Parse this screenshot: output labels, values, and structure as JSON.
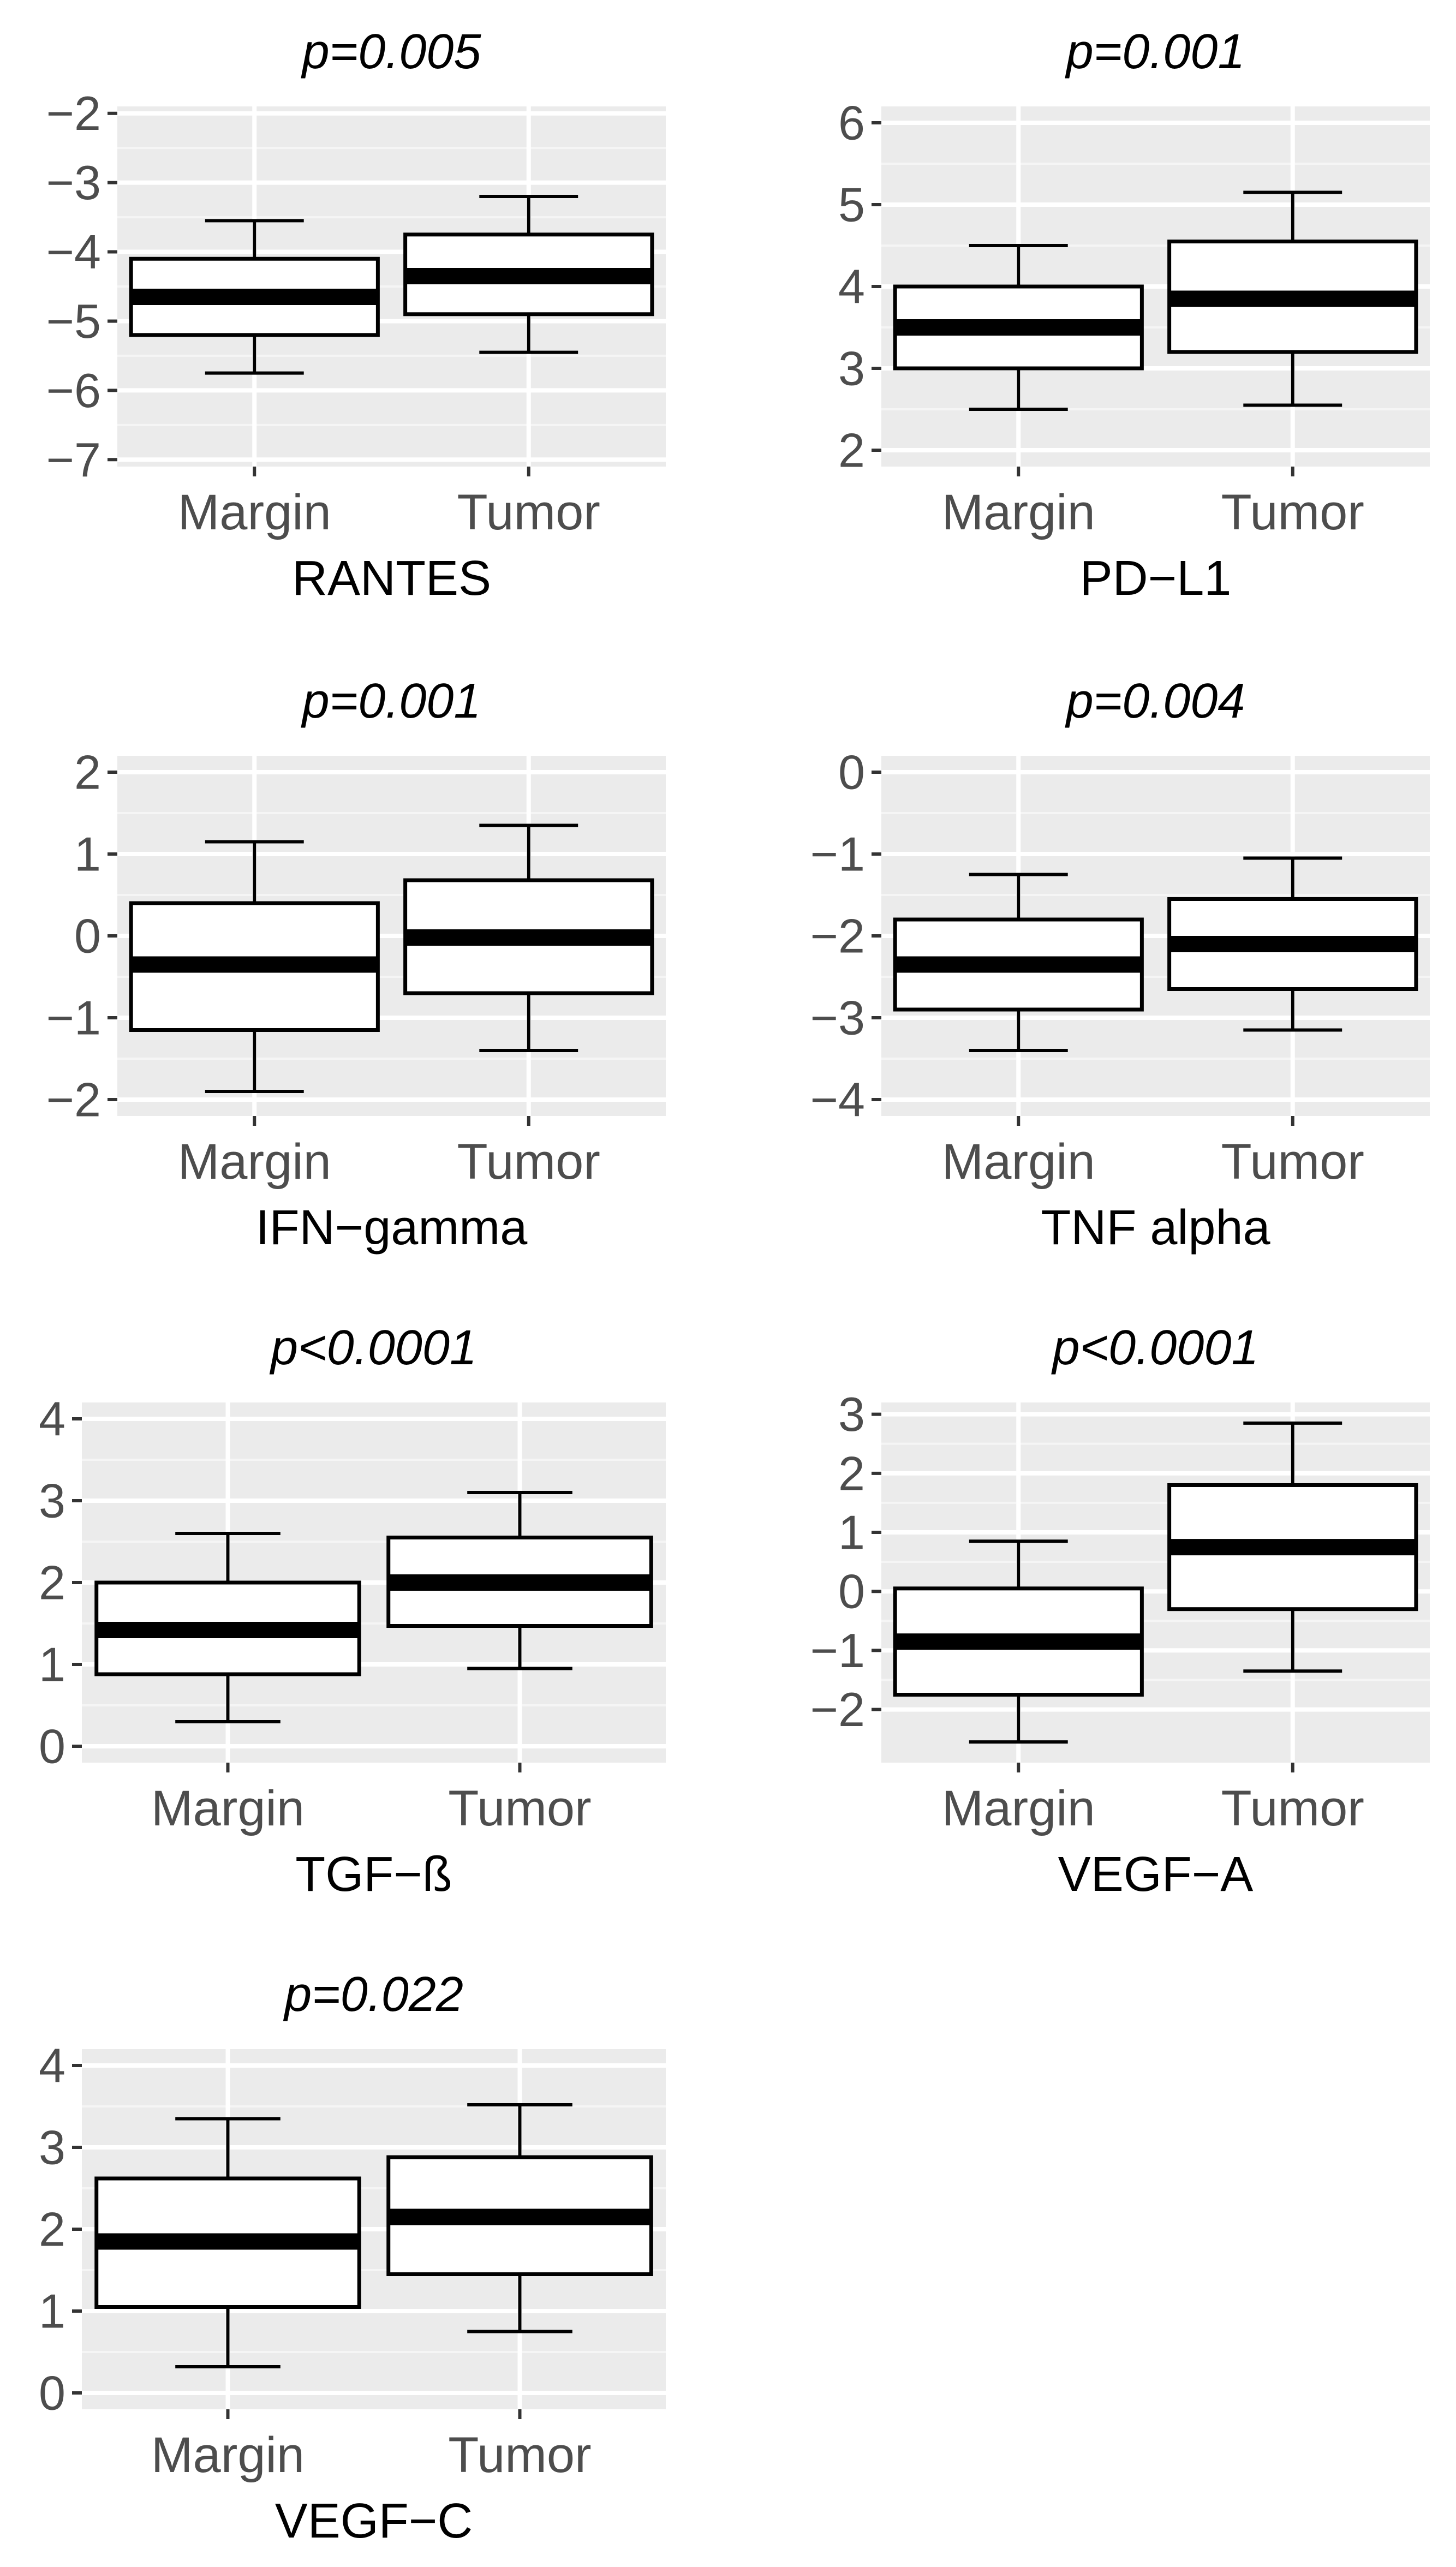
{
  "figure": {
    "colors": {
      "panel_background": "#ebebeb",
      "grid_major": "#ffffff",
      "grid_minor": "#f5f5f5",
      "box_fill": "#ffffff",
      "box_stroke": "#000000",
      "tick_text": "#4d4d4d",
      "title_text": "#000000"
    }
  },
  "chart_data": [
    {
      "type": "boxplot",
      "title": "p=0.005",
      "xlabel": "RANTES",
      "ylabel": "",
      "categories": [
        "Margin",
        "Tumor"
      ],
      "ylim": [
        -7.1,
        -1.9
      ],
      "yticks": [
        -2,
        -3,
        -4,
        -5,
        -6,
        -7
      ],
      "ytick_labels": [
        "−2",
        "−3",
        "−4",
        "−5",
        "−6",
        "−7"
      ],
      "boxes": [
        {
          "name": "Margin",
          "whisker_low": -5.75,
          "q1": -5.2,
          "median": -4.65,
          "q3": -4.1,
          "whisker_high": -3.55
        },
        {
          "name": "Tumor",
          "whisker_low": -5.45,
          "q1": -4.9,
          "median": -4.35,
          "q3": -3.75,
          "whisker_high": -3.2
        }
      ]
    },
    {
      "type": "boxplot",
      "title": "p=0.001",
      "xlabel": "PD−L1",
      "ylabel": "",
      "categories": [
        "Margin",
        "Tumor"
      ],
      "ylim": [
        1.8,
        6.2
      ],
      "yticks": [
        2,
        3,
        4,
        5,
        6
      ],
      "ytick_labels": [
        "2",
        "3",
        "4",
        "5",
        "6"
      ],
      "boxes": [
        {
          "name": "Margin",
          "whisker_low": 2.5,
          "q1": 3.0,
          "median": 3.5,
          "q3": 4.0,
          "whisker_high": 4.5
        },
        {
          "name": "Tumor",
          "whisker_low": 2.55,
          "q1": 3.2,
          "median": 3.85,
          "q3": 4.55,
          "whisker_high": 5.15
        }
      ]
    },
    {
      "type": "boxplot",
      "title": "p=0.001",
      "xlabel": "IFN−gamma",
      "ylabel": "",
      "categories": [
        "Margin",
        "Tumor"
      ],
      "ylim": [
        -2.2,
        2.2
      ],
      "yticks": [
        2,
        1,
        0,
        -1,
        -2
      ],
      "ytick_labels": [
        "2",
        "1",
        "0",
        "−1",
        "−2"
      ],
      "boxes": [
        {
          "name": "Margin",
          "whisker_low": -1.9,
          "q1": -1.15,
          "median": -0.35,
          "q3": 0.4,
          "whisker_high": 1.15
        },
        {
          "name": "Tumor",
          "whisker_low": -1.4,
          "q1": -0.7,
          "median": -0.02,
          "q3": 0.68,
          "whisker_high": 1.35
        }
      ]
    },
    {
      "type": "boxplot",
      "title": "p=0.004",
      "xlabel": "TNF alpha",
      "ylabel": "",
      "categories": [
        "Margin",
        "Tumor"
      ],
      "ylim": [
        -4.2,
        0.2
      ],
      "yticks": [
        0,
        -1,
        -2,
        -3,
        -4
      ],
      "ytick_labels": [
        "0",
        "−1",
        "−2",
        "−3",
        "−4"
      ],
      "boxes": [
        {
          "name": "Margin",
          "whisker_low": -3.4,
          "q1": -2.9,
          "median": -2.35,
          "q3": -1.8,
          "whisker_high": -1.25
        },
        {
          "name": "Tumor",
          "whisker_low": -3.15,
          "q1": -2.65,
          "median": -2.1,
          "q3": -1.55,
          "whisker_high": -1.05
        }
      ]
    },
    {
      "type": "boxplot",
      "title": "p<0.0001",
      "xlabel": "TGF−ß",
      "ylabel": "",
      "categories": [
        "Margin",
        "Tumor"
      ],
      "ylim": [
        -0.2,
        4.2
      ],
      "yticks": [
        4,
        3,
        2,
        1,
        0
      ],
      "ytick_labels": [
        "4",
        "3",
        "2",
        "1",
        "0"
      ],
      "boxes": [
        {
          "name": "Margin",
          "whisker_low": 0.3,
          "q1": 0.88,
          "median": 1.42,
          "q3": 2.0,
          "whisker_high": 2.6
        },
        {
          "name": "Tumor",
          "whisker_low": 0.95,
          "q1": 1.47,
          "median": 2.0,
          "q3": 2.55,
          "whisker_high": 3.1
        }
      ]
    },
    {
      "type": "boxplot",
      "title": "p<0.0001",
      "xlabel": "VEGF−A",
      "ylabel": "",
      "categories": [
        "Margin",
        "Tumor"
      ],
      "ylim": [
        -2.9,
        3.2
      ],
      "yticks": [
        3,
        2,
        1,
        0,
        -1,
        -2
      ],
      "ytick_labels": [
        "3",
        "2",
        "1",
        "0",
        "−1",
        "−2"
      ],
      "boxes": [
        {
          "name": "Margin",
          "whisker_low": -2.55,
          "q1": -1.75,
          "median": -0.85,
          "q3": 0.05,
          "whisker_high": 0.85
        },
        {
          "name": "Tumor",
          "whisker_low": -1.35,
          "q1": -0.3,
          "median": 0.75,
          "q3": 1.8,
          "whisker_high": 2.85
        }
      ]
    },
    {
      "type": "boxplot",
      "title": "p=0.022",
      "xlabel": "VEGF−C",
      "ylabel": "",
      "categories": [
        "Margin",
        "Tumor"
      ],
      "ylim": [
        -0.2,
        4.2
      ],
      "yticks": [
        4,
        3,
        2,
        1,
        0
      ],
      "ytick_labels": [
        "4",
        "3",
        "2",
        "1",
        "0"
      ],
      "boxes": [
        {
          "name": "Margin",
          "whisker_low": 0.32,
          "q1": 1.05,
          "median": 1.85,
          "q3": 2.62,
          "whisker_high": 3.35
        },
        {
          "name": "Tumor",
          "whisker_low": 0.75,
          "q1": 1.45,
          "median": 2.15,
          "q3": 2.88,
          "whisker_high": 3.52
        }
      ]
    }
  ]
}
